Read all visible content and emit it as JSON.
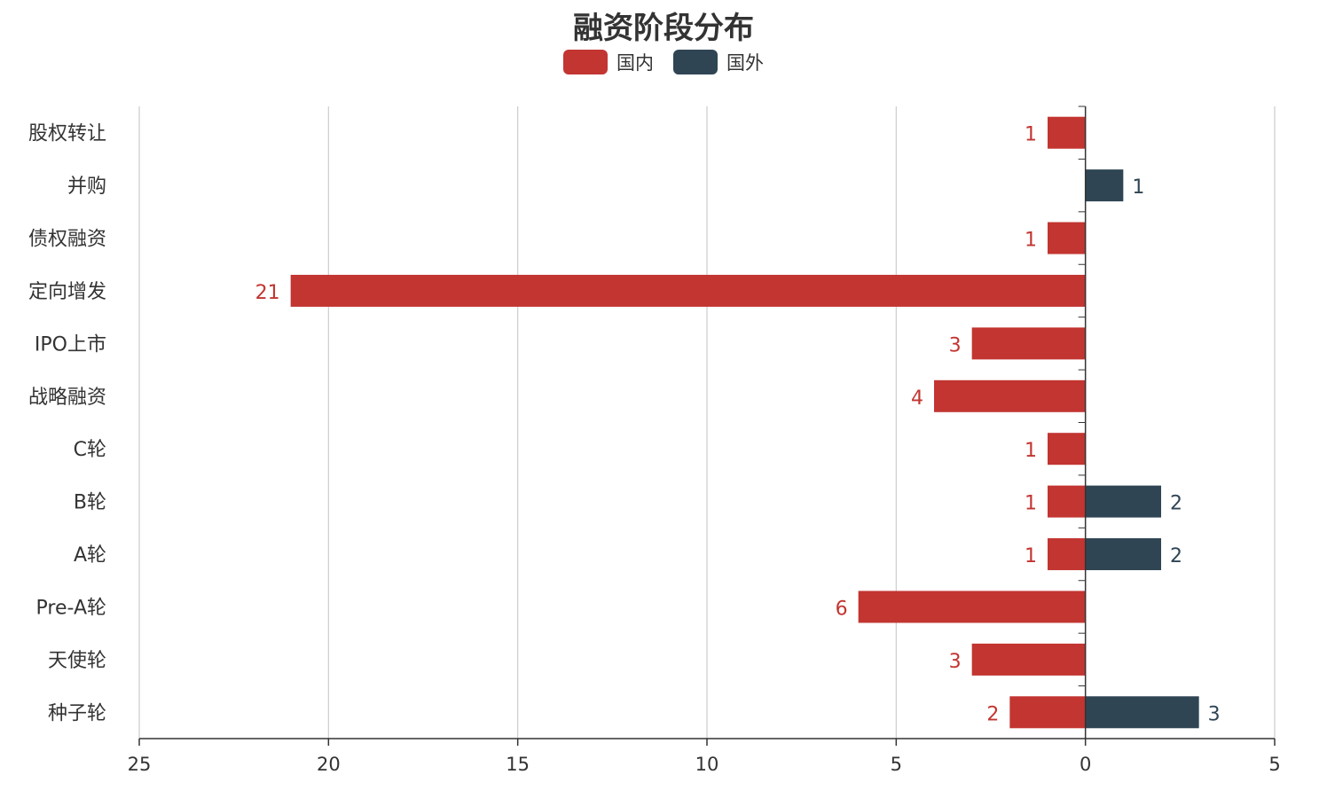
{
  "chart_data": {
    "type": "bar",
    "orientation": "horizontal-diverging",
    "title": "融资阶段分布",
    "categories": [
      "股权转让",
      "并购",
      "债权融资",
      "定向增发",
      "IPO上市",
      "战略融资",
      "C轮",
      "B轮",
      "A轮",
      "Pre-A轮",
      "天使轮",
      "种子轮"
    ],
    "series": [
      {
        "name": "国内",
        "color": "#c23531",
        "direction": "left",
        "values": [
          1,
          0,
          1,
          21,
          3,
          4,
          1,
          1,
          1,
          6,
          3,
          2
        ]
      },
      {
        "name": "国外",
        "color": "#2f4554",
        "direction": "right",
        "values": [
          0,
          1,
          0,
          0,
          0,
          0,
          0,
          2,
          2,
          0,
          0,
          3
        ]
      }
    ],
    "x_ticks": [
      "25",
      "20",
      "15",
      "10",
      "5",
      "0",
      "5"
    ],
    "xlim": [
      -25,
      5
    ],
    "grid": true,
    "legend_position": "top-center"
  }
}
